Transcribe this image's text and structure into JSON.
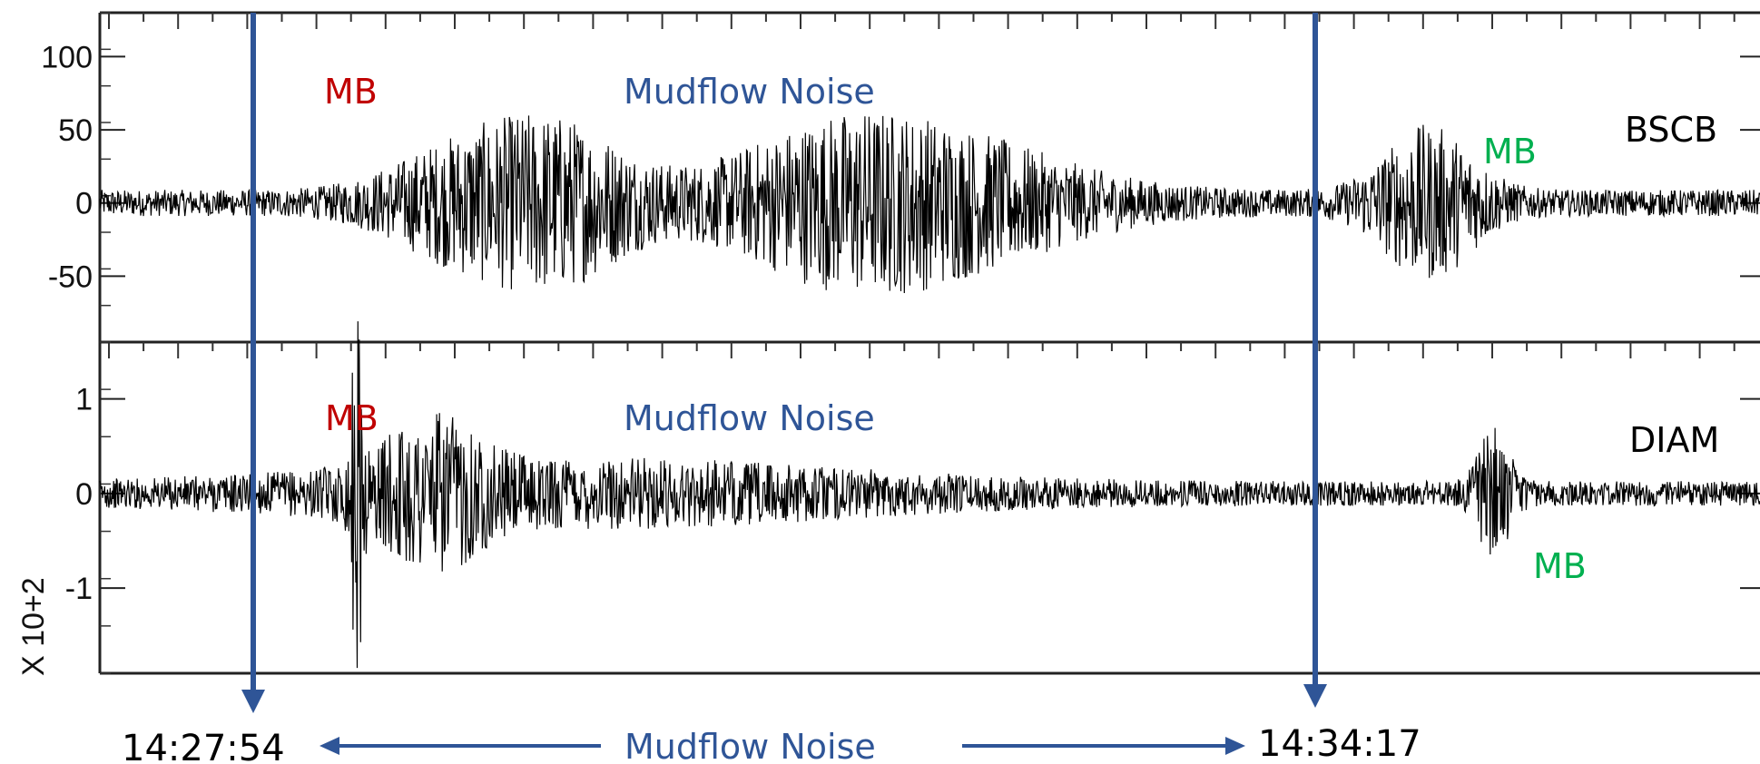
{
  "colors": {
    "mb_first": "#c00000",
    "mb_second": "#00b050",
    "mudflow": "#2f5597",
    "marker_line": "#2f5597",
    "trace": "#000000"
  },
  "chart_data": [
    {
      "type": "line",
      "station": "BSCB",
      "yticks": [
        100,
        50,
        0,
        -50
      ],
      "ytick_labels": [
        "100",
        "50",
        "0",
        "-50"
      ],
      "ylim": [
        -95,
        130
      ],
      "annotations": [
        {
          "text": "MB",
          "kind": "mb_first"
        },
        {
          "text": "Mudflow Noise",
          "kind": "mudflow"
        },
        {
          "text": "MB",
          "kind": "mb_second"
        }
      ],
      "bursts": [
        {
          "t": 0.22,
          "amp": 32,
          "width": 0.055
        },
        {
          "t": 0.28,
          "amp": 40,
          "width": 0.05
        },
        {
          "t": 0.44,
          "amp": 38,
          "width": 0.08
        },
        {
          "t": 0.52,
          "amp": 30,
          "width": 0.09
        },
        {
          "t": 0.8,
          "amp": 45,
          "width": 0.035
        }
      ],
      "base_amplitude": 9
    },
    {
      "type": "line",
      "station": "DIAM",
      "yticks": [
        1,
        0,
        -1
      ],
      "ytick_labels": [
        "1",
        "0",
        "-1"
      ],
      "ylim": [
        -1.9,
        1.6
      ],
      "scale_label": "X 10+2",
      "annotations": [
        {
          "text": "MB",
          "kind": "mb_first"
        },
        {
          "text": "Mudflow Noise",
          "kind": "mudflow"
        },
        {
          "text": "MB",
          "kind": "mb_second"
        }
      ],
      "bursts": [
        {
          "t": 0.155,
          "amp": 1.6,
          "width": 0.004
        },
        {
          "t": 0.2,
          "amp": 0.55,
          "width": 0.035
        },
        {
          "t": 0.3,
          "amp": 0.25,
          "width": 0.2
        },
        {
          "t": 0.84,
          "amp": 0.6,
          "width": 0.012
        }
      ],
      "base_amplitude": 0.13
    }
  ],
  "time_axis": {
    "start_label": "14:27:54",
    "end_label": "14:34:17",
    "span_label": "Mudflow Noise"
  }
}
